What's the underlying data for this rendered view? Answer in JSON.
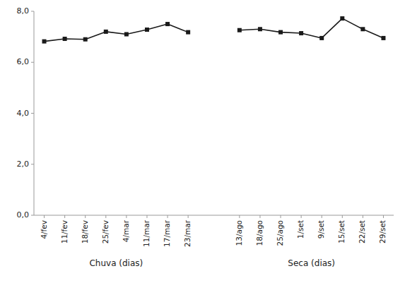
{
  "chart_data": {
    "type": "line",
    "categories": [
      "4/fev",
      "11/fev",
      "18/fev",
      "25/fev",
      "4/mar",
      "11/mar",
      "17/mar",
      "23/mar",
      "13/ago",
      "18/ago",
      "25/ago",
      "1/set",
      "9/set",
      "15/set",
      "22/set",
      "29/set"
    ],
    "series": [
      {
        "color": "#1a1a1a",
        "marker": "square",
        "values": [
          6.82,
          6.92,
          6.9,
          7.2,
          7.1,
          7.28,
          7.5,
          7.18,
          null,
          null,
          null,
          null,
          null,
          null,
          null,
          null
        ]
      },
      {
        "color": "#1a1a1a",
        "marker": "square",
        "values": [
          null,
          null,
          null,
          null,
          null,
          null,
          null,
          null,
          7.26,
          7.3,
          7.18,
          7.14,
          6.95,
          7.72,
          7.3,
          6.95
        ]
      }
    ],
    "annotations": [
      "Chuva (dias)",
      "Seca (dias)"
    ],
    "ylim": [
      0,
      8.0
    ],
    "yticks": [
      {
        "value": 0.0,
        "label": "0,0"
      },
      {
        "value": 2.0,
        "label": "2,0"
      },
      {
        "value": 4.0,
        "label": "4,0"
      },
      {
        "value": 6.0,
        "label": "6,0"
      },
      {
        "value": 8.0,
        "label": "8,0"
      }
    ],
    "grid": false
  }
}
